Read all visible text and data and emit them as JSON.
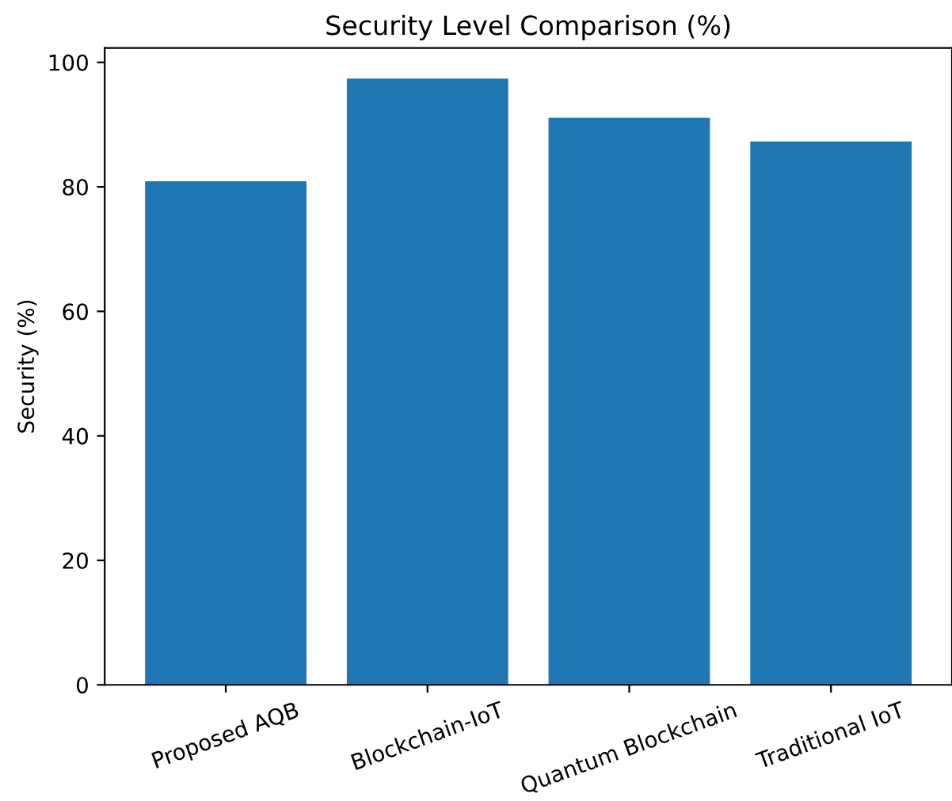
{
  "chart_data": {
    "type": "bar",
    "title": "Security Level Comparison (%)",
    "ylabel": "Security (%)",
    "categories": [
      "Proposed AQB",
      "Blockchain-IoT",
      "Quantum Blockchain",
      "Traditional IoT"
    ],
    "values": [
      80.9,
      97.4,
      91.1,
      87.3
    ],
    "color": "#1f77b4",
    "ylim": [
      0,
      102.3
    ],
    "yticks": [
      0,
      20,
      40,
      60,
      80,
      100
    ],
    "grid": false,
    "legend": false
  }
}
